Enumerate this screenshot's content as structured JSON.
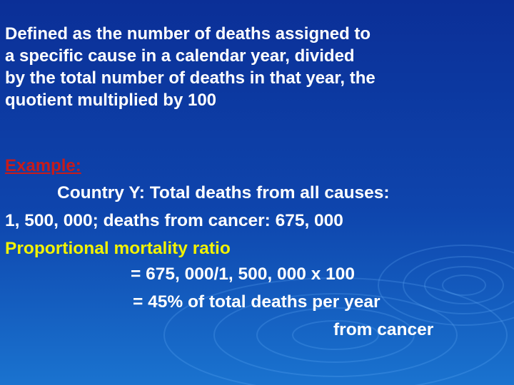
{
  "definition": "Defined as the number of deaths assigned to\na specific cause in a calendar year, divided\nby the total number of deaths in that year, the\nquotient multiplied by 100",
  "example": {
    "heading": "Example:",
    "line_1": "Country Y: Total deaths from all causes:",
    "line_2": "1, 500, 000; deaths from cancer: 675, 000"
  },
  "ratio": {
    "label": "Proportional mortality ratio",
    "calc_1": "= 675, 000/1, 500, 000 x 100",
    "calc_2": "= 45% of total deaths per year",
    "calc_3": "from cancer"
  },
  "colors": {
    "background_top": "#0b2f97",
    "background_bottom": "#1a73cf",
    "body_text": "#ffffff",
    "example_heading": "#c61b1b",
    "label_highlight": "#f3f300"
  }
}
